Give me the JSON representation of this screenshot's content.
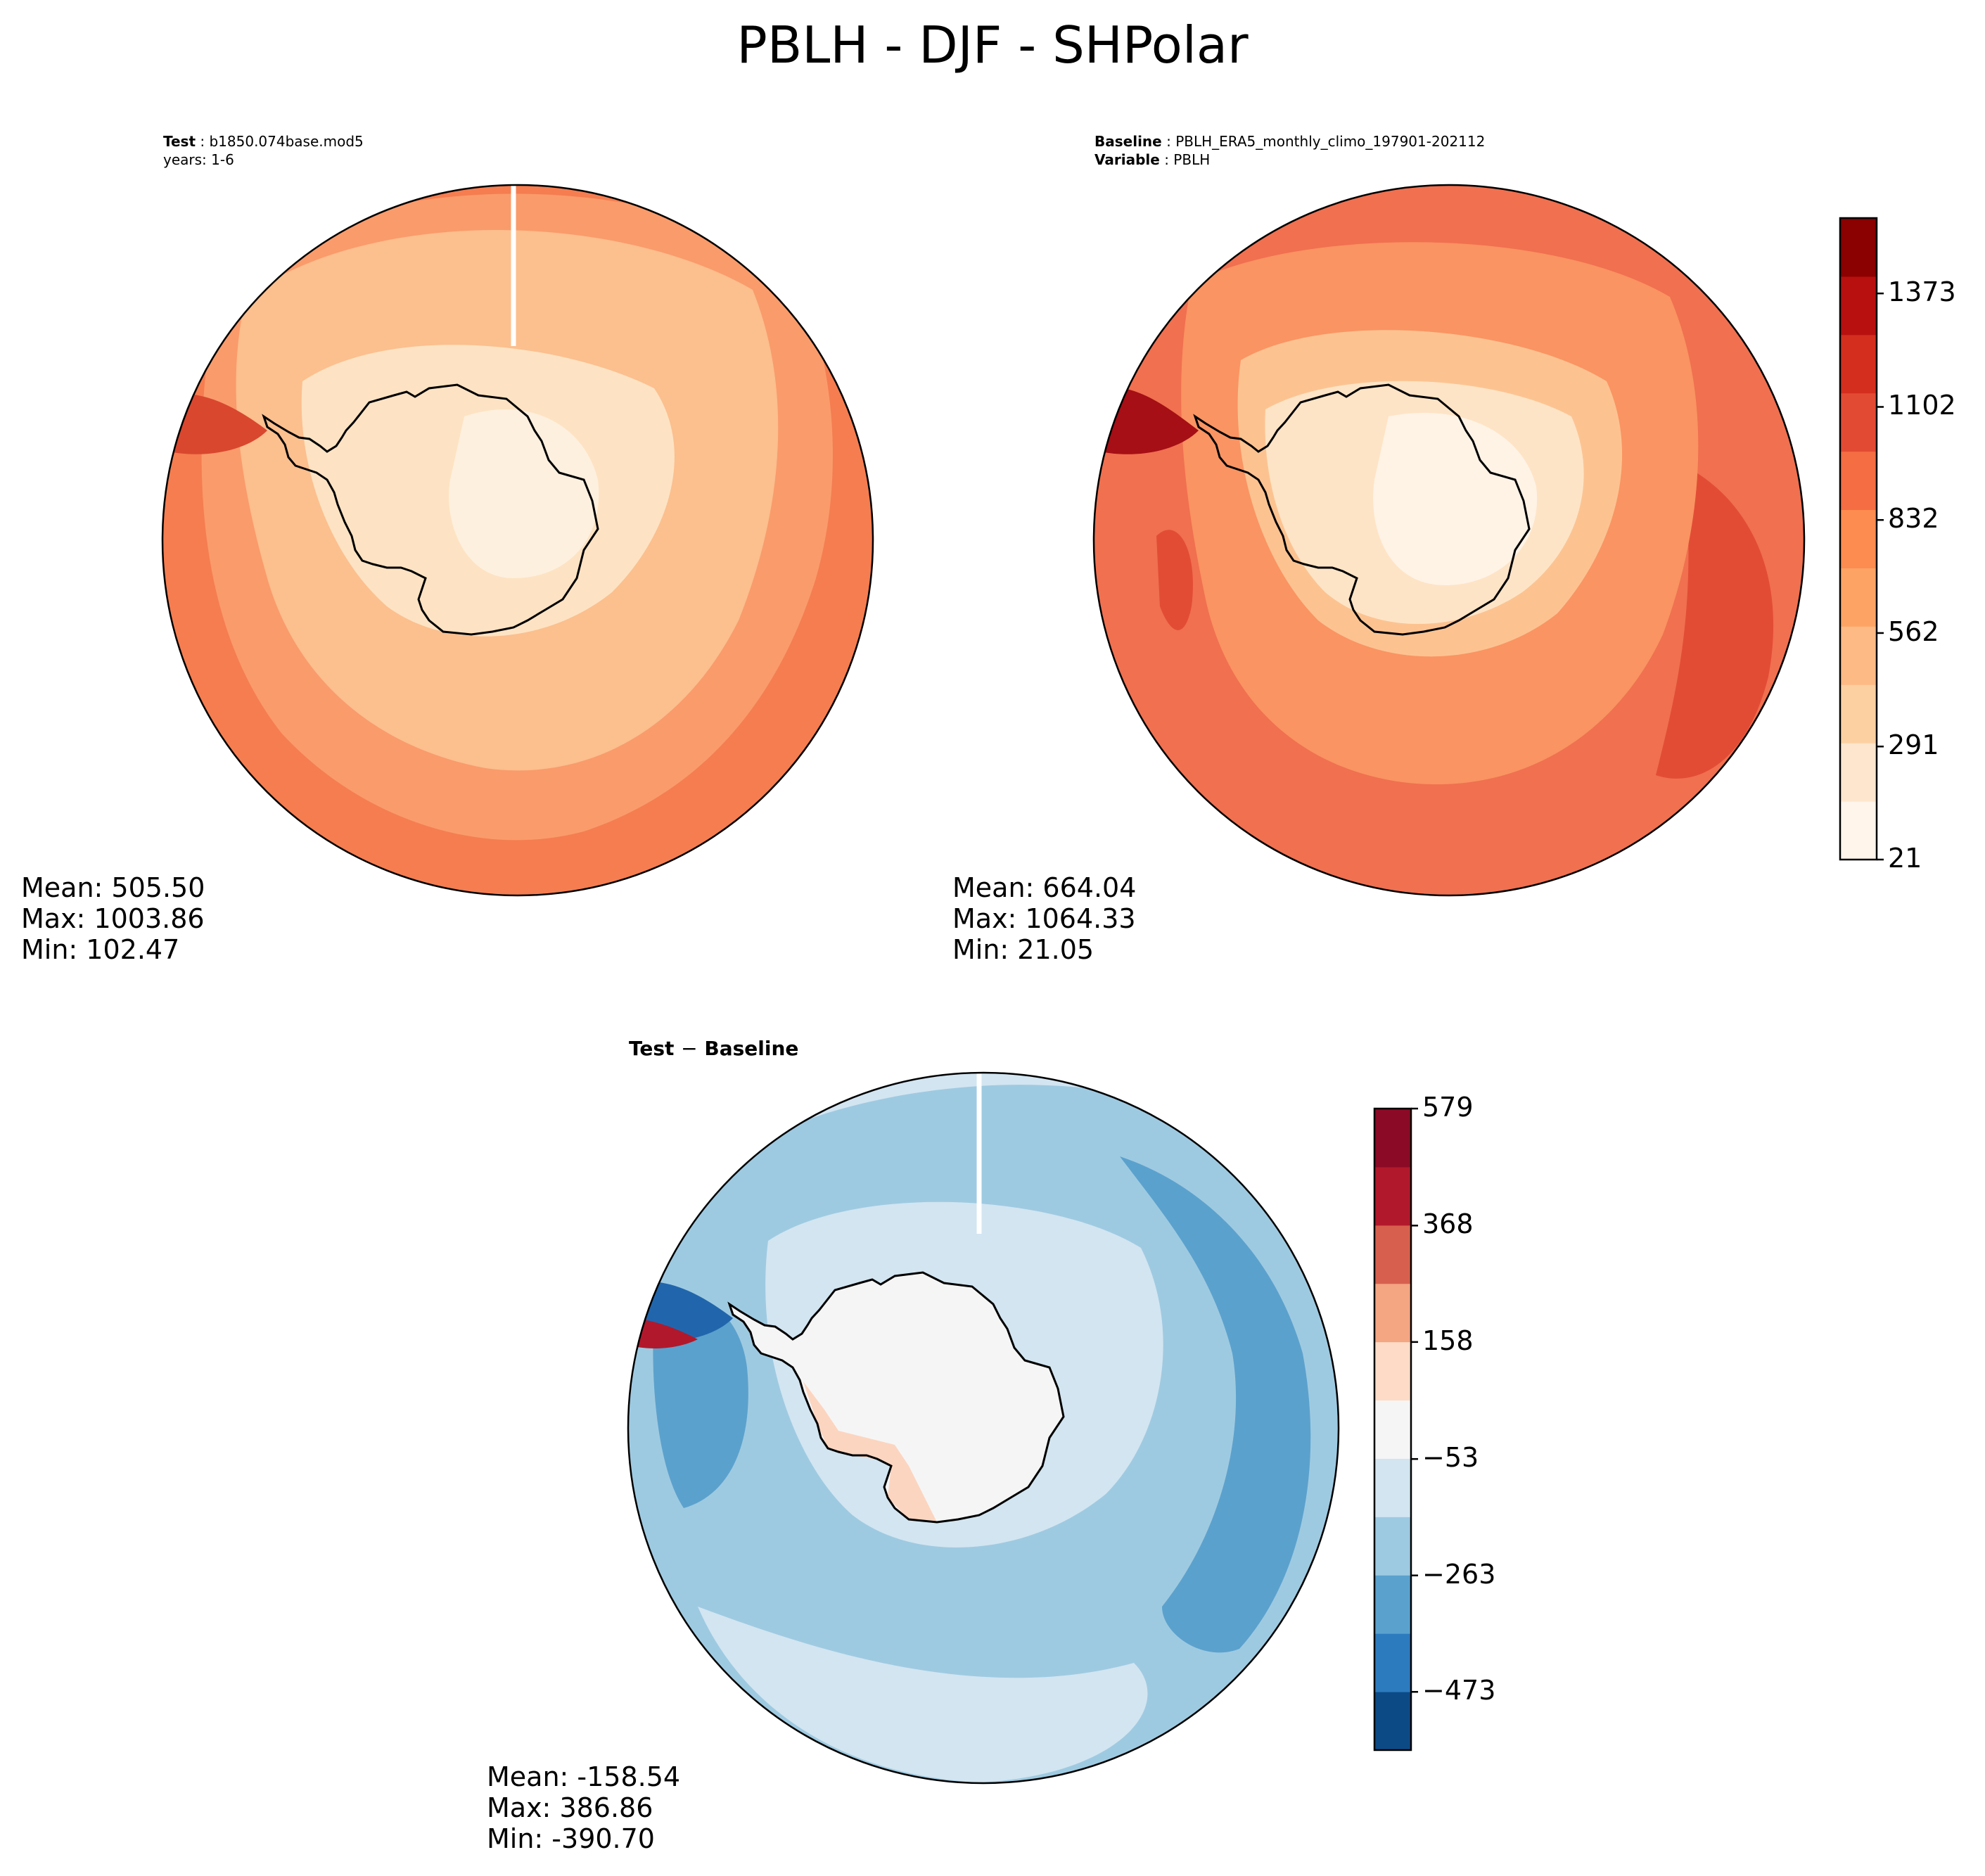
{
  "title": "PBLH - DJF - SHPolar",
  "panels": {
    "test": {
      "header_label": "Test",
      "header_value": "b1850.074base.mod5",
      "header_line2": "years: 1-6",
      "mean": "Mean: 505.50",
      "max": "Max: 1003.86",
      "min": "Min: 102.47"
    },
    "baseline": {
      "header_label": "Baseline",
      "header_value": "PBLH_ERA5_monthly_climo_197901-202112",
      "header_label2": "Variable",
      "header_value2": "PBLH",
      "mean": "Mean: 664.04",
      "max": "Max: 1064.33",
      "min": "Min: 21.05"
    },
    "diff": {
      "title_a": "Test",
      "title_op": "−",
      "title_b": "Baseline",
      "mean": "Mean: -158.54",
      "max": "Max: 386.86",
      "min": "Min: -390.70"
    }
  },
  "colorbars": {
    "main": {
      "ticks": [
        "1373",
        "1102",
        "832",
        "562",
        "291",
        "21"
      ],
      "tick_values": [
        1373,
        1102,
        832,
        562,
        291,
        21
      ],
      "range": [
        21,
        1553
      ],
      "colors": [
        "#fff5eb",
        "#fee6ce",
        "#fdd0a2",
        "#fdba85",
        "#fda465",
        "#fc8c4f",
        "#f46d43",
        "#e34a33",
        "#d42e1e",
        "#b8100f",
        "#8b0000"
      ]
    },
    "diff": {
      "ticks": [
        "579",
        "368",
        "158",
        "−53",
        "−263",
        "−473"
      ],
      "tick_values": [
        579,
        368,
        158,
        -53,
        -263,
        -473
      ],
      "range": [
        -578,
        579
      ],
      "colors": [
        "#0c4a86",
        "#2c7bbf",
        "#5aa1ce",
        "#9dcae1",
        "#d2e5f1",
        "#f5f5f5",
        "#fddbc7",
        "#f4a582",
        "#d6604d",
        "#b2182b",
        "#8b0a26"
      ]
    }
  },
  "map_colors": {
    "main_ocean_outer": "#f57d50",
    "main_ocean_mid": "#fa9b6b",
    "main_ring": "#fcbf8e",
    "main_ice": "#fde3c3",
    "main_ice_core": "#fef0df",
    "base_ocean_outer": "#f07050",
    "base_ocean_band": "#e24c35",
    "base_ring": "#fa9462",
    "base_ring_inner": "#fcc391",
    "base_ice": "#fee4c6",
    "base_ice_core": "#fff3e6",
    "diff_ocean": "#9ecae1",
    "diff_ocean_dark": "#5ba1cd",
    "diff_ocean_light": "#d2e5f1",
    "diff_land": "#f5f5f5",
    "diff_coast": "#fcd5c0"
  }
}
